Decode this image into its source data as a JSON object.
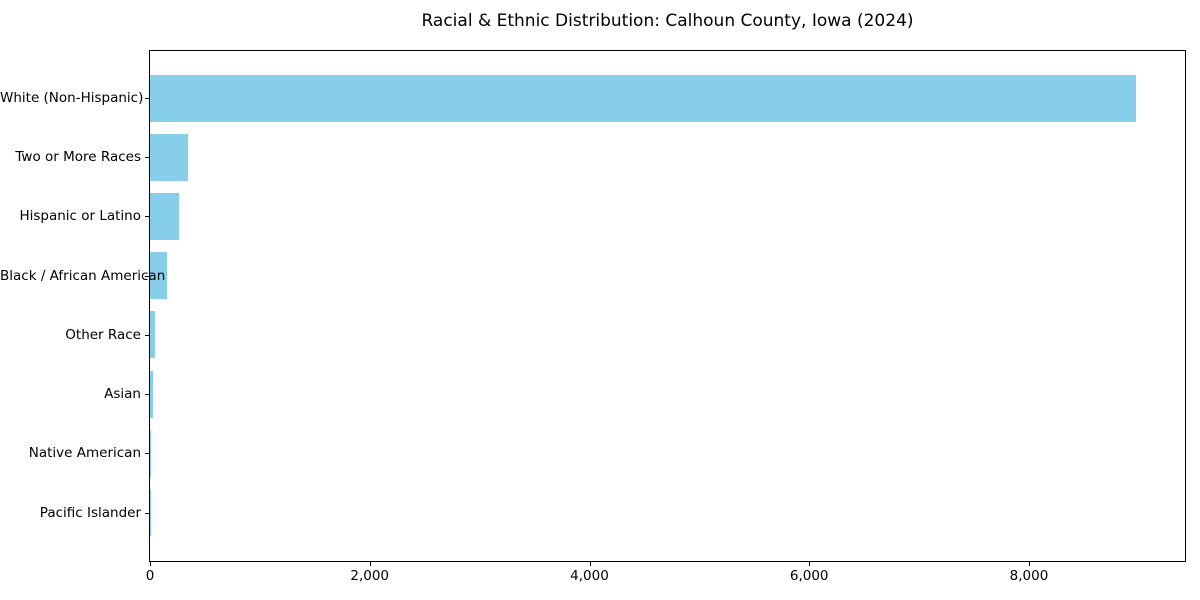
{
  "figure": {
    "background": "#ffffff"
  },
  "chart_data": {
    "type": "bar",
    "orientation": "horizontal",
    "title": "Racial & Ethnic Distribution: Calhoun County, Iowa (2024)",
    "categories": [
      "White (Non-Hispanic)",
      "Two or More Races",
      "Hispanic or Latino",
      "Black / African American",
      "Other Race",
      "Asian",
      "Native American",
      "Pacific Islander"
    ],
    "values": [
      8970,
      345,
      265,
      150,
      48,
      27,
      10,
      2
    ],
    "xlabel": "",
    "ylabel": "",
    "xlim": [
      0,
      9420
    ],
    "xticks": [
      0,
      2000,
      4000,
      6000,
      8000
    ],
    "xtick_labels": [
      "0",
      "2,000",
      "4,000",
      "6,000",
      "8,000"
    ],
    "bar_color": "#87CEEB",
    "axis_color": "#000000",
    "text_color": "#000000",
    "grid": false,
    "legend": false
  }
}
